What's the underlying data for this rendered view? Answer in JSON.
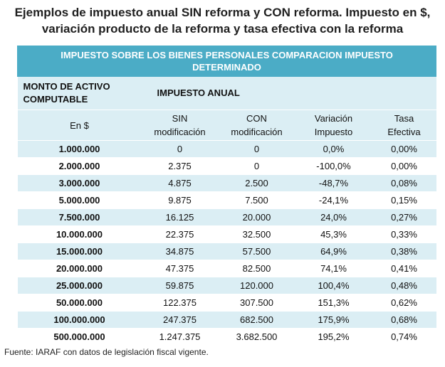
{
  "title": {
    "line1": "Ejemplos de impuesto anual SIN reforma y CON reforma. Impuesto en $,",
    "line2": "variación producto de la reforma y tasa efectiva con la reforma"
  },
  "table": {
    "banner_line1": "IMPUESTO SOBRE LOS BIENES PERSONALES COMPARACION IMPUESTO",
    "banner_line2": "DETERMINADO",
    "monto_header_line1": "MONTO DE ACTIVO",
    "monto_header_line2": "COMPUTABLE",
    "impuesto_header": "IMPUESTO ANUAL",
    "subheaders": {
      "en": "En $",
      "sin_line1": "SIN",
      "sin_line2": "modificación",
      "con_line1": "CON",
      "con_line2": "modificación",
      "var_line1": "Variación",
      "var_line2": "Impuesto",
      "tasa_line1": "Tasa",
      "tasa_line2": "Efectiva"
    },
    "rows": [
      {
        "monto": "1.000.000",
        "sin": "0",
        "con": "0",
        "variacion": "0,0%",
        "tasa": "0,00%"
      },
      {
        "monto": "2.000.000",
        "sin": "2.375",
        "con": "0",
        "variacion": "-100,0%",
        "tasa": "0,00%"
      },
      {
        "monto": "3.000.000",
        "sin": "4.875",
        "con": "2.500",
        "variacion": "-48,7%",
        "tasa": "0,08%"
      },
      {
        "monto": "5.000.000",
        "sin": "9.875",
        "con": "7.500",
        "variacion": "-24,1%",
        "tasa": "0,15%"
      },
      {
        "monto": "7.500.000",
        "sin": "16.125",
        "con": "20.000",
        "variacion": "24,0%",
        "tasa": "0,27%"
      },
      {
        "monto": "10.000.000",
        "sin": "22.375",
        "con": "32.500",
        "variacion": "45,3%",
        "tasa": "0,33%"
      },
      {
        "monto": "15.000.000",
        "sin": "34.875",
        "con": "57.500",
        "variacion": "64,9%",
        "tasa": "0,38%"
      },
      {
        "monto": "20.000.000",
        "sin": "47.375",
        "con": "82.500",
        "variacion": "74,1%",
        "tasa": "0,41%"
      },
      {
        "monto": "25.000.000",
        "sin": "59.875",
        "con": "120.000",
        "variacion": "100,4%",
        "tasa": "0,48%"
      },
      {
        "monto": "50.000.000",
        "sin": "122.375",
        "con": "307.500",
        "variacion": "151,3%",
        "tasa": "0,62%"
      },
      {
        "monto": "100.000.000",
        "sin": "247.375",
        "con": "682.500",
        "variacion": "175,9%",
        "tasa": "0,68%"
      },
      {
        "monto": "500.000.000",
        "sin": "1.247.375",
        "con": "3.682.500",
        "variacion": "195,2%",
        "tasa": "0,74%"
      }
    ]
  },
  "source": "Fuente: IARAF con datos de legislación fiscal vigente.",
  "colors": {
    "banner": "#4bacc6",
    "shade": "#dbeef4",
    "rule": "#9fd2e0"
  }
}
